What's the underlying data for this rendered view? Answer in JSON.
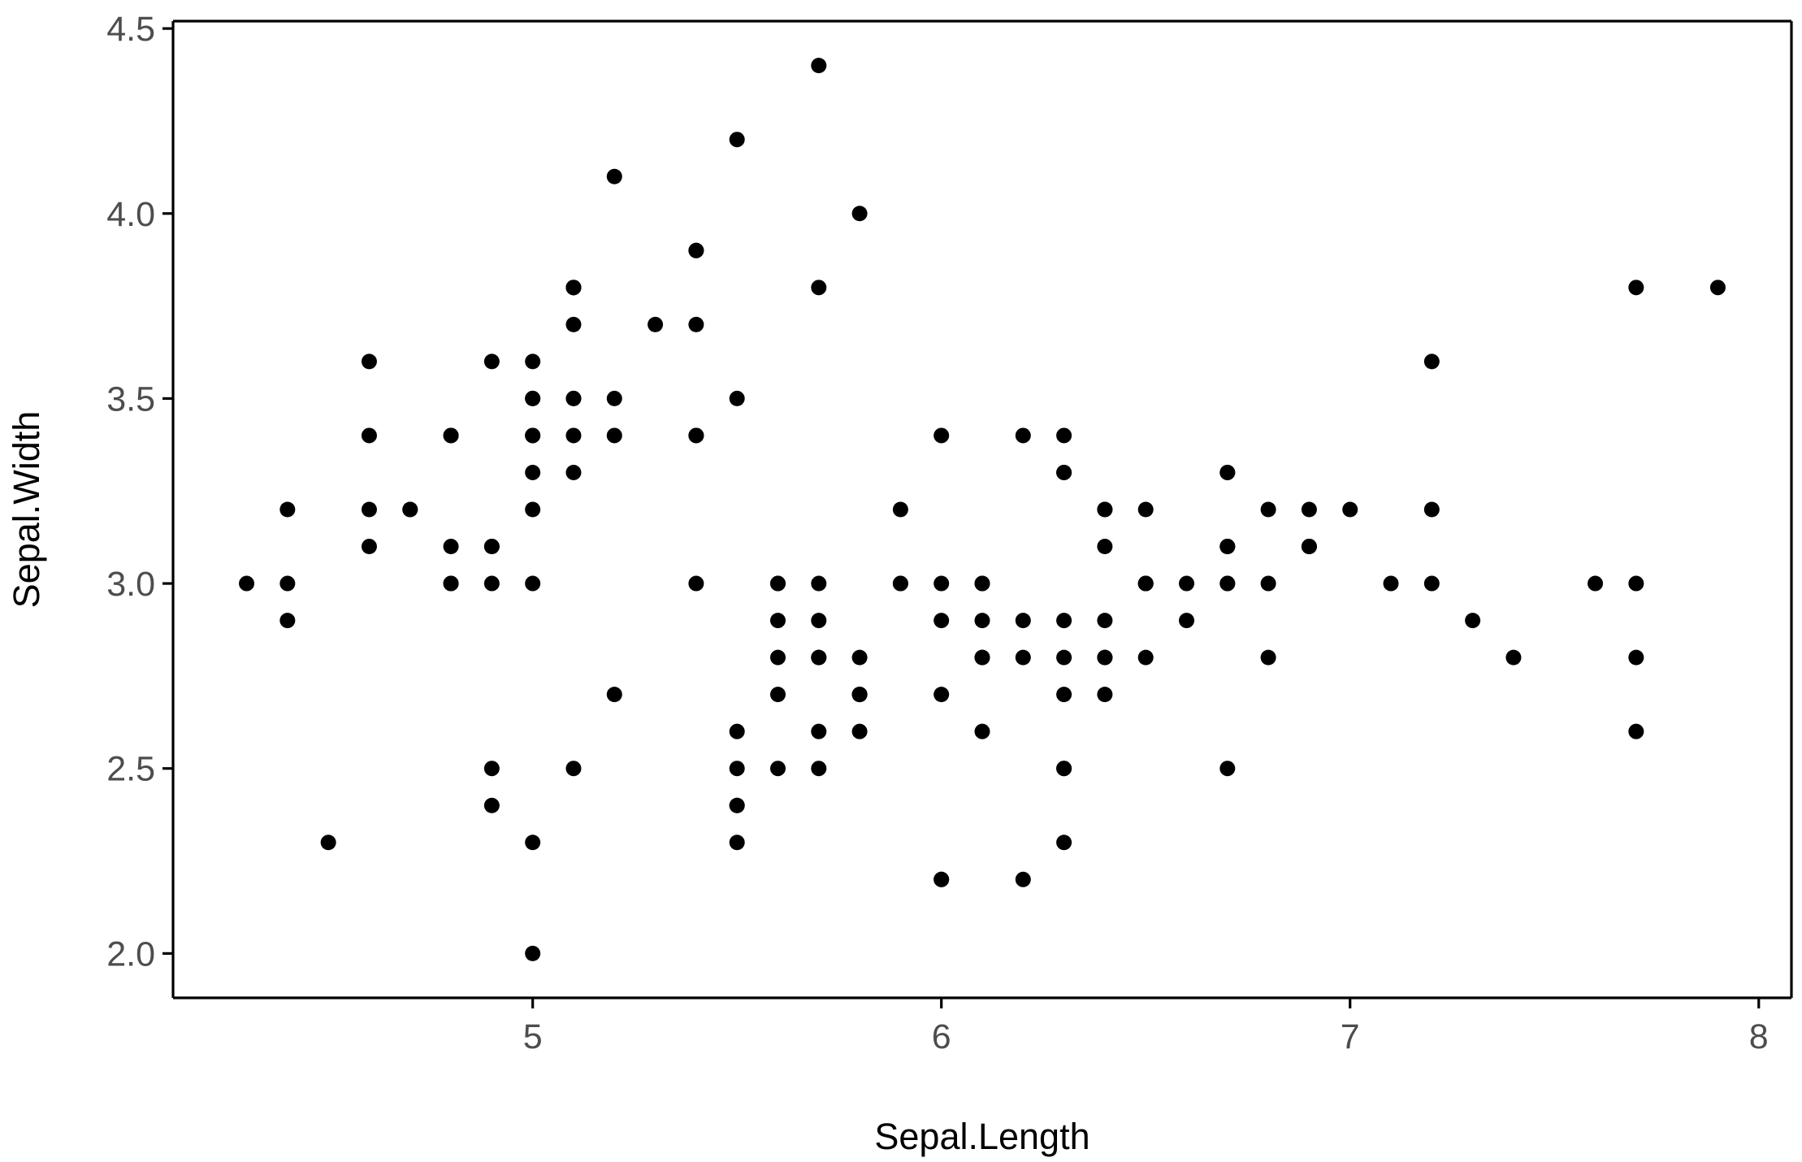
{
  "chart_data": {
    "type": "scatter",
    "title": "",
    "xlabel": "Sepal.Length",
    "ylabel": "Sepal.Width",
    "xlim": [
      4.12,
      8.08
    ],
    "ylim": [
      1.88,
      4.52
    ],
    "x_ticks": [
      5,
      6,
      7,
      8
    ],
    "x_tick_labels": [
      "5",
      "6",
      "7",
      "8"
    ],
    "y_ticks": [
      2.0,
      2.5,
      3.0,
      3.5,
      4.0,
      4.5
    ],
    "y_tick_labels": [
      "2.0",
      "2.5",
      "3.0",
      "3.5",
      "4.0",
      "4.5"
    ],
    "grid": false,
    "legend": "none",
    "point_color": "#000000",
    "series": [
      {
        "points": [
          [
            5.1,
            3.5
          ],
          [
            4.9,
            3.0
          ],
          [
            4.7,
            3.2
          ],
          [
            4.6,
            3.1
          ],
          [
            5.0,
            3.6
          ],
          [
            5.4,
            3.9
          ],
          [
            4.6,
            3.4
          ],
          [
            5.0,
            3.4
          ],
          [
            4.4,
            2.9
          ],
          [
            4.9,
            3.1
          ],
          [
            5.4,
            3.7
          ],
          [
            4.8,
            3.4
          ],
          [
            4.8,
            3.0
          ],
          [
            4.3,
            3.0
          ],
          [
            5.8,
            4.0
          ],
          [
            5.7,
            4.4
          ],
          [
            5.4,
            3.9
          ],
          [
            5.1,
            3.5
          ],
          [
            5.7,
            3.8
          ],
          [
            5.1,
            3.8
          ],
          [
            5.4,
            3.4
          ],
          [
            5.1,
            3.7
          ],
          [
            4.6,
            3.6
          ],
          [
            5.1,
            3.3
          ],
          [
            4.8,
            3.4
          ],
          [
            5.0,
            3.0
          ],
          [
            5.0,
            3.4
          ],
          [
            5.2,
            3.5
          ],
          [
            5.2,
            3.4
          ],
          [
            4.7,
            3.2
          ],
          [
            4.8,
            3.1
          ],
          [
            5.4,
            3.4
          ],
          [
            5.2,
            4.1
          ],
          [
            5.5,
            4.2
          ],
          [
            4.9,
            3.1
          ],
          [
            5.0,
            3.2
          ],
          [
            5.5,
            3.5
          ],
          [
            4.9,
            3.6
          ],
          [
            4.4,
            3.0
          ],
          [
            5.1,
            3.4
          ],
          [
            5.0,
            3.5
          ],
          [
            4.5,
            2.3
          ],
          [
            4.4,
            3.2
          ],
          [
            5.0,
            3.5
          ],
          [
            5.1,
            3.8
          ],
          [
            4.8,
            3.0
          ],
          [
            5.1,
            3.8
          ],
          [
            4.6,
            3.2
          ],
          [
            5.3,
            3.7
          ],
          [
            5.0,
            3.3
          ],
          [
            7.0,
            3.2
          ],
          [
            6.4,
            3.2
          ],
          [
            6.9,
            3.1
          ],
          [
            5.5,
            2.3
          ],
          [
            6.5,
            2.8
          ],
          [
            5.7,
            2.8
          ],
          [
            6.3,
            3.3
          ],
          [
            4.9,
            2.4
          ],
          [
            6.6,
            2.9
          ],
          [
            5.2,
            2.7
          ],
          [
            5.0,
            2.0
          ],
          [
            5.9,
            3.0
          ],
          [
            6.0,
            2.2
          ],
          [
            6.1,
            2.9
          ],
          [
            5.6,
            2.9
          ],
          [
            6.7,
            3.1
          ],
          [
            5.6,
            3.0
          ],
          [
            5.8,
            2.7
          ],
          [
            6.2,
            2.2
          ],
          [
            5.6,
            2.5
          ],
          [
            5.9,
            3.2
          ],
          [
            6.1,
            2.8
          ],
          [
            6.3,
            2.5
          ],
          [
            6.1,
            2.8
          ],
          [
            6.4,
            2.9
          ],
          [
            6.6,
            3.0
          ],
          [
            6.8,
            2.8
          ],
          [
            6.7,
            3.0
          ],
          [
            6.0,
            2.9
          ],
          [
            5.7,
            2.6
          ],
          [
            5.5,
            2.4
          ],
          [
            5.5,
            2.4
          ],
          [
            5.8,
            2.7
          ],
          [
            6.0,
            2.7
          ],
          [
            5.4,
            3.0
          ],
          [
            6.0,
            3.4
          ],
          [
            6.7,
            3.1
          ],
          [
            6.3,
            2.3
          ],
          [
            5.6,
            3.0
          ],
          [
            5.5,
            2.5
          ],
          [
            5.5,
            2.6
          ],
          [
            6.1,
            3.0
          ],
          [
            5.8,
            2.6
          ],
          [
            5.0,
            2.3
          ],
          [
            5.6,
            2.7
          ],
          [
            5.7,
            3.0
          ],
          [
            5.7,
            2.9
          ],
          [
            6.2,
            2.9
          ],
          [
            5.1,
            2.5
          ],
          [
            5.7,
            2.8
          ],
          [
            6.3,
            3.3
          ],
          [
            5.8,
            2.7
          ],
          [
            7.1,
            3.0
          ],
          [
            6.3,
            2.9
          ],
          [
            6.5,
            3.0
          ],
          [
            7.6,
            3.0
          ],
          [
            4.9,
            2.5
          ],
          [
            7.3,
            2.9
          ],
          [
            6.7,
            2.5
          ],
          [
            7.2,
            3.6
          ],
          [
            6.5,
            3.2
          ],
          [
            6.4,
            2.7
          ],
          [
            6.8,
            3.0
          ],
          [
            5.7,
            2.5
          ],
          [
            5.8,
            2.8
          ],
          [
            6.4,
            3.2
          ],
          [
            6.5,
            3.0
          ],
          [
            7.7,
            3.8
          ],
          [
            7.7,
            2.6
          ],
          [
            6.0,
            2.2
          ],
          [
            6.9,
            3.2
          ],
          [
            5.6,
            2.8
          ],
          [
            7.7,
            2.8
          ],
          [
            6.3,
            2.7
          ],
          [
            6.7,
            3.3
          ],
          [
            7.2,
            3.2
          ],
          [
            6.2,
            2.8
          ],
          [
            6.1,
            3.0
          ],
          [
            6.4,
            2.8
          ],
          [
            7.2,
            3.0
          ],
          [
            7.4,
            2.8
          ],
          [
            7.9,
            3.8
          ],
          [
            6.4,
            2.8
          ],
          [
            6.3,
            2.8
          ],
          [
            6.1,
            2.6
          ],
          [
            7.7,
            3.0
          ],
          [
            6.3,
            3.4
          ],
          [
            6.4,
            3.1
          ],
          [
            6.0,
            3.0
          ],
          [
            6.9,
            3.1
          ],
          [
            6.7,
            3.1
          ],
          [
            6.9,
            3.1
          ],
          [
            5.8,
            2.7
          ],
          [
            6.8,
            3.2
          ],
          [
            6.7,
            3.3
          ],
          [
            6.7,
            3.0
          ],
          [
            6.3,
            2.5
          ],
          [
            6.5,
            3.0
          ],
          [
            6.2,
            3.4
          ],
          [
            5.9,
            3.0
          ]
        ]
      }
    ]
  }
}
